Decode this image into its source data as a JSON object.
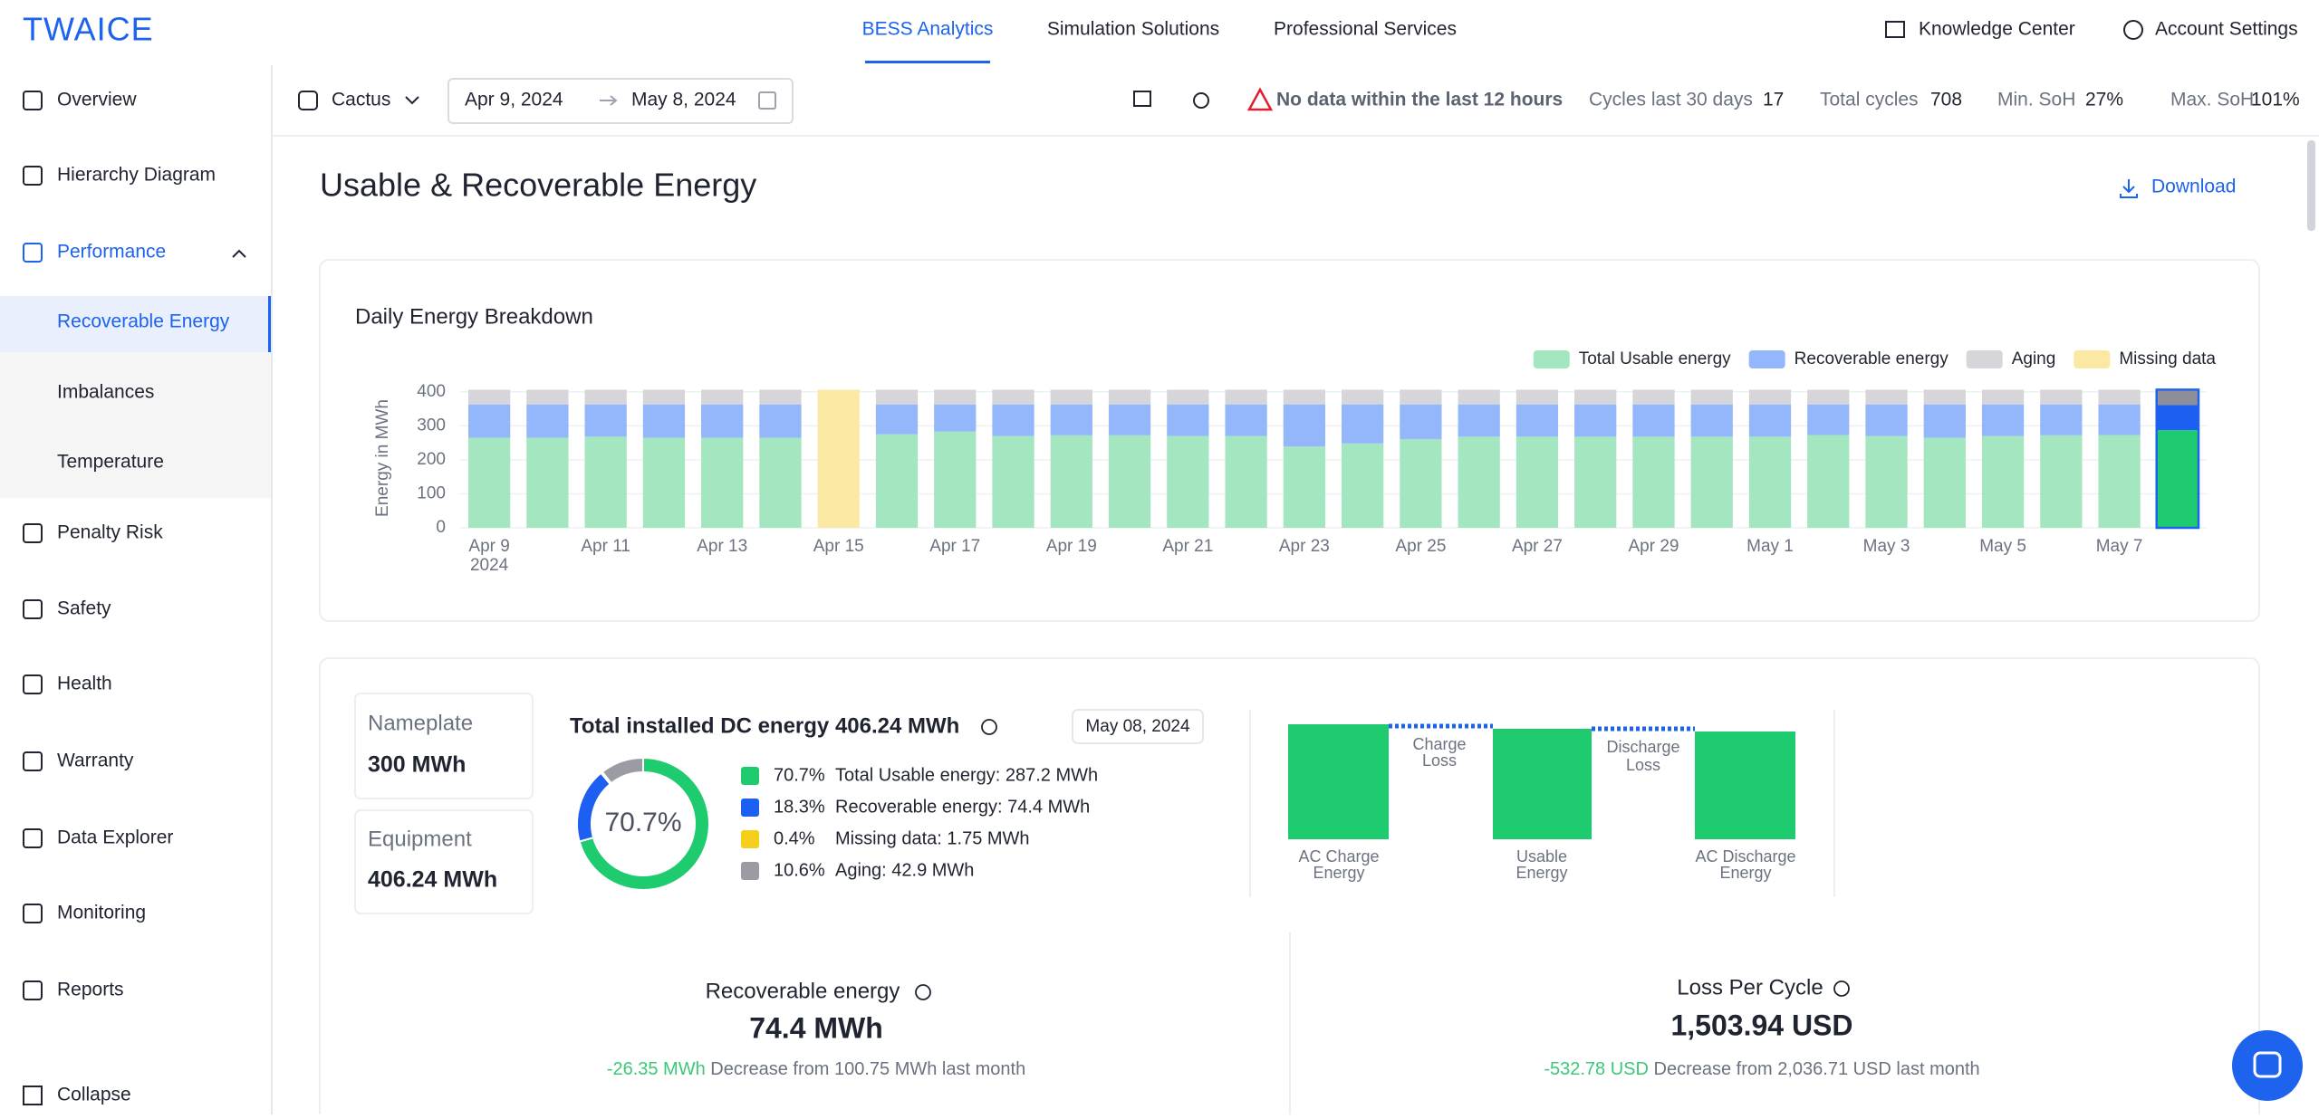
{
  "nav": {
    "logo": "TWAICE",
    "tabs": [
      "BESS Analytics",
      "Simulation Solutions",
      "Professional Services"
    ],
    "links": [
      "Knowledge Center",
      "Account Settings"
    ]
  },
  "sidebar": {
    "items": [
      "Overview",
      "Hierarchy Diagram",
      "Performance",
      "Recoverable Energy",
      "Imbalances",
      "Temperature",
      "Penalty Risk",
      "Safety",
      "Health",
      "Warranty",
      "Data Explorer",
      "Monitoring",
      "Reports"
    ],
    "collapse": "Collapse"
  },
  "toolbar": {
    "site": "Cactus",
    "date_from": "Apr 9, 2024",
    "date_to": "May 8, 2024",
    "warning": "No data within the last 12 hours",
    "stats": [
      {
        "label": "Cycles last 30 days",
        "value": "17"
      },
      {
        "label": "Total cycles",
        "value": "708"
      },
      {
        "label": "Min. SoH",
        "value": "27%"
      },
      {
        "label": "Max. SoH",
        "value": "101%"
      }
    ]
  },
  "page": {
    "title": "Usable & Recoverable Energy",
    "download": "Download"
  },
  "chart_data": {
    "type": "bar",
    "stacked": true,
    "title": "Daily Energy Breakdown",
    "y_label": "Energy in MWh",
    "x_year_label": "2024",
    "categories": [
      "Apr 9",
      null,
      "Apr 11",
      null,
      "Apr 13",
      null,
      "Apr 15",
      null,
      "Apr 17",
      null,
      "Apr 19",
      null,
      "Apr 21",
      null,
      "Apr 23",
      null,
      "Apr 25",
      null,
      "Apr 27",
      null,
      "Apr 29",
      null,
      "May 1",
      null,
      "May 3",
      null,
      "May 5",
      null,
      "May 7",
      null
    ],
    "series": [
      {
        "name": "Total Usable energy",
        "color": "#a4e6bf",
        "selected_color": "#1fcb6f",
        "values": [
          265,
          265,
          268,
          265,
          265,
          265,
          0,
          275,
          283,
          270,
          272,
          272,
          270,
          270,
          239,
          248,
          261,
          268,
          268,
          268,
          268,
          268,
          268,
          273,
          270,
          265,
          270,
          272,
          273,
          287.2
        ]
      },
      {
        "name": "Recoverable energy",
        "color": "#94b6fa",
        "selected_color": "#1d5ff0",
        "values": [
          98,
          98,
          95,
          98,
          98,
          98,
          0,
          88,
          80,
          93,
          91,
          91,
          93,
          93,
          124,
          115,
          102,
          95,
          95,
          95,
          95,
          95,
          95,
          90,
          93,
          98,
          93,
          91,
          90,
          74.4
        ]
      },
      {
        "name": "Aging",
        "color": "#d6d6da",
        "selected_color": "#8e8e98",
        "values": [
          43,
          43,
          43,
          43,
          43,
          43,
          0,
          43,
          43,
          43,
          43,
          43,
          43,
          43,
          43,
          43,
          43,
          43,
          43,
          43,
          43,
          43,
          43,
          43,
          43,
          43,
          43,
          43,
          43,
          42.9
        ]
      },
      {
        "name": "Missing data",
        "color": "#fbe9a3",
        "selected_color": "#f6cf1a",
        "values": [
          0,
          0,
          0,
          0,
          0,
          0,
          406,
          0,
          0,
          0,
          0,
          0,
          0,
          0,
          0,
          0,
          0,
          0,
          0,
          0,
          0,
          0,
          0,
          0,
          0,
          0,
          0,
          0,
          0,
          1.75
        ]
      }
    ],
    "selected_index": 29,
    "ylim": [
      0,
      410
    ],
    "yticks": [
      0,
      100,
      200,
      300,
      400
    ],
    "grid": true,
    "legend": "top-right"
  },
  "installed": {
    "nameplate_label": "Nameplate",
    "nameplate_value": "300 MWh",
    "equipment_label": "Equipment",
    "equipment_value": "406.24 MWh",
    "title": "Total installed DC energy 406.24 MWh",
    "date": "May 08, 2024",
    "center_label": "70.7%",
    "items": [
      {
        "value": 70.7,
        "value_label": "70.7%",
        "label": "Total Usable energy: 287.2 MWh",
        "color": "#1fcb6f"
      },
      {
        "value": 18.3,
        "value_label": "18.3%",
        "label": "Recoverable energy: 74.4 MWh",
        "color": "#1d5ff0"
      },
      {
        "value": 0.4,
        "value_label": "0.4%",
        "label": "Missing data: 1.75 MWh",
        "color": "#f6cf1a"
      },
      {
        "value": 10.6,
        "value_label": "10.6%",
        "label": "Aging: 42.9 MWh",
        "color": "#9b9ba3"
      }
    ]
  },
  "flow": {
    "labels": [
      [
        "AC Charge",
        "Energy"
      ],
      [
        "Usable",
        "Energy"
      ],
      [
        "AC Discharge",
        "Energy"
      ]
    ],
    "losses": [
      [
        "Charge",
        "Loss"
      ],
      [
        "Discharge",
        "Loss"
      ]
    ]
  },
  "kpis": [
    {
      "title": "Recoverable energy",
      "value": "74.4 MWh",
      "change": "-26.35 MWh",
      "note": "Decrease from 100.75 MWh last month"
    },
    {
      "title": "Loss Per Cycle",
      "value": "1,503.94 USD",
      "change": "-532.78 USD",
      "note": "Decrease from 2,036.71 USD last month"
    }
  ]
}
